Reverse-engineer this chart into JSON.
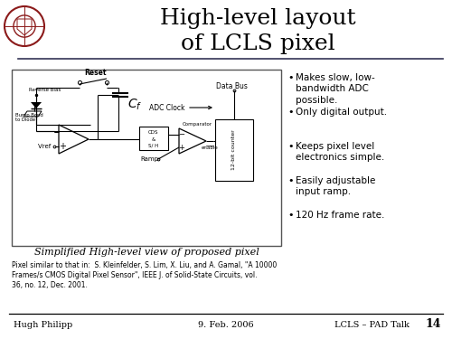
{
  "bg_color": "#ffffff",
  "title_line1": "High-level layout",
  "title_line2": "of LCLS pixel",
  "title_fontsize": 18,
  "title_color": "#000000",
  "header_line_color": "#333355",
  "bullet_points": [
    "Makes slow, low-\nbandwidth ADC\npossible.",
    "Only digital output.",
    "Keeps pixel level\nelectronics simple.",
    "Easily adjustable\ninput ramp.",
    "120 Hz frame rate."
  ],
  "bullet_fontsize": 7.5,
  "diagram_caption": "Simplified High-level view of proposed pixel",
  "diagram_caption_fontsize": 8,
  "footer_left": "Hugh Philipp",
  "footer_center": "9. Feb. 2006",
  "footer_right": "LCLS – PAD Talk",
  "footer_page": "14",
  "footer_fontsize": 7,
  "citation": "Pixel similar to that in:  S. Kleinfelder, S. Lim, X. Liu, and A. Gamal, \"A 10000\nFrames/s CMOS Digital Pixel Sensor\", IEEE J. of Solid-State Circuits, vol.\n36, no. 12, Dec. 2001.",
  "citation_fontsize": 5.5,
  "logo_color": "#8b1a1a",
  "diagram_border_color": "#555555"
}
